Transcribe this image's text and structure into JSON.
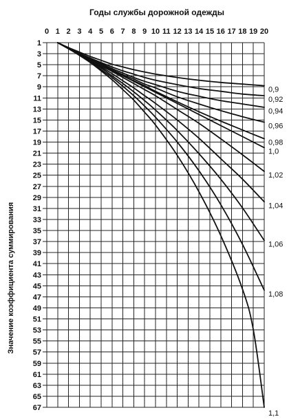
{
  "chart_data": {
    "type": "line",
    "title": "Годы службы дорожной одежды",
    "ylabel": "Значение коэффициента суммирования",
    "x_ticks": [
      "0",
      "1",
      "2",
      "3",
      "4",
      "5",
      "6",
      "7",
      "8",
      "9",
      "10",
      "11",
      "12",
      "13",
      "14",
      "15",
      "16",
      "17",
      "18",
      "19",
      "20"
    ],
    "y_ticks": [
      "1",
      "3",
      "5",
      "7",
      "9",
      "11",
      "13",
      "15",
      "17",
      "19",
      "21",
      "23",
      "25",
      "27",
      "29",
      "31",
      "33",
      "35",
      "37",
      "39",
      "41",
      "43",
      "45",
      "47",
      "49",
      "51",
      "53",
      "55",
      "57",
      "59",
      "61",
      "63",
      "65",
      "67"
    ],
    "xlim": [
      0,
      20
    ],
    "ylim": [
      1,
      67
    ],
    "y_inverted": true,
    "grid": true,
    "x_axis_position": "top",
    "series": [
      {
        "name": "0,9",
        "x": [
          1,
          2,
          3,
          4,
          5,
          6,
          7,
          8,
          9,
          10,
          12,
          14,
          16,
          18,
          20
        ],
        "y": [
          1,
          1.9,
          2.7,
          3.5,
          4.2,
          4.9,
          5.4,
          5.9,
          6.3,
          6.7,
          7.3,
          7.8,
          8.2,
          8.5,
          8.8
        ]
      },
      {
        "name": "0,92",
        "x": [
          1,
          2,
          3,
          4,
          5,
          6,
          7,
          8,
          9,
          10,
          12,
          14,
          16,
          18,
          20
        ],
        "y": [
          1,
          2,
          2.9,
          3.8,
          4.6,
          5.4,
          6.1,
          6.7,
          7.3,
          7.8,
          8.6,
          9.3,
          9.8,
          10.3,
          10.6
        ]
      },
      {
        "name": "0,94",
        "x": [
          1,
          2,
          3,
          4,
          5,
          6,
          7,
          8,
          9,
          10,
          12,
          14,
          16,
          18,
          20
        ],
        "y": [
          1,
          2,
          3,
          3.9,
          4.8,
          5.7,
          6.5,
          7.3,
          8,
          8.6,
          9.8,
          10.7,
          11.5,
          12.1,
          12.7
        ]
      },
      {
        "name": "0,96",
        "x": [
          1,
          2,
          3,
          4,
          5,
          6,
          7,
          8,
          9,
          10,
          12,
          14,
          16,
          18,
          20
        ],
        "y": [
          1,
          2,
          3,
          4,
          5,
          5.9,
          6.8,
          7.6,
          8.5,
          9.2,
          10.8,
          12.1,
          13.3,
          14.4,
          15.4
        ]
      },
      {
        "name": "0,98",
        "x": [
          1,
          2,
          3,
          4,
          5,
          6,
          7,
          8,
          9,
          10,
          12,
          14,
          16,
          18,
          20
        ],
        "y": [
          1,
          2,
          3,
          4,
          5,
          6,
          7,
          7.9,
          8.8,
          9.8,
          11.7,
          13.5,
          15.2,
          16.8,
          18.4
        ]
      },
      {
        "name": "1,0",
        "x": [
          1,
          2,
          3,
          4,
          5,
          6,
          7,
          8,
          9,
          10,
          12,
          14,
          16,
          18,
          20
        ],
        "y": [
          1,
          2,
          3,
          4,
          5,
          6,
          7,
          8,
          9,
          10,
          12,
          14,
          16,
          18,
          20
        ]
      },
      {
        "name": "1,02",
        "x": [
          1,
          2,
          3,
          4,
          5,
          6,
          7,
          8,
          9,
          10,
          12,
          14,
          16,
          18,
          20
        ],
        "y": [
          1,
          2,
          3,
          4.1,
          5.2,
          6.2,
          7.3,
          8.4,
          9.5,
          10.6,
          13.1,
          15.6,
          18.4,
          21.3,
          24.3
        ]
      },
      {
        "name": "1,04",
        "x": [
          1,
          2,
          3,
          4,
          5,
          6,
          7,
          8,
          9,
          10,
          12,
          14,
          16,
          18,
          20
        ],
        "y": [
          1,
          2,
          3.1,
          4.2,
          5.4,
          6.6,
          7.9,
          9.2,
          10.6,
          12,
          15,
          18.3,
          22,
          25.7,
          29.8
        ]
      },
      {
        "name": "1,06",
        "x": [
          1,
          2,
          3,
          4,
          5,
          6,
          7,
          8,
          9,
          10,
          12,
          14,
          16,
          18,
          20
        ],
        "y": [
          1,
          2.1,
          3.2,
          4.4,
          5.6,
          7,
          8.4,
          9.9,
          11.5,
          13.2,
          16.9,
          21.1,
          25.7,
          30.9,
          36.8
        ]
      },
      {
        "name": "1,08",
        "x": [
          1,
          2,
          3,
          4,
          5,
          6,
          7,
          8,
          9,
          10,
          12,
          14,
          16,
          18,
          20
        ],
        "y": [
          1,
          2.1,
          3.2,
          4.5,
          5.9,
          7.3,
          8.9,
          10.6,
          12.5,
          14.5,
          19,
          24.2,
          30.3,
          37.5,
          45.8
        ]
      },
      {
        "name": "1,1",
        "x": [
          1,
          2,
          3,
          4,
          5,
          6,
          7,
          8,
          9,
          10,
          12,
          14,
          16,
          18,
          19,
          20
        ],
        "y": [
          1,
          2.1,
          3.3,
          4.6,
          6.1,
          7.7,
          9.5,
          11.4,
          13.6,
          15.9,
          21.4,
          28,
          35.9,
          45.6,
          53,
          67
        ]
      }
    ]
  }
}
